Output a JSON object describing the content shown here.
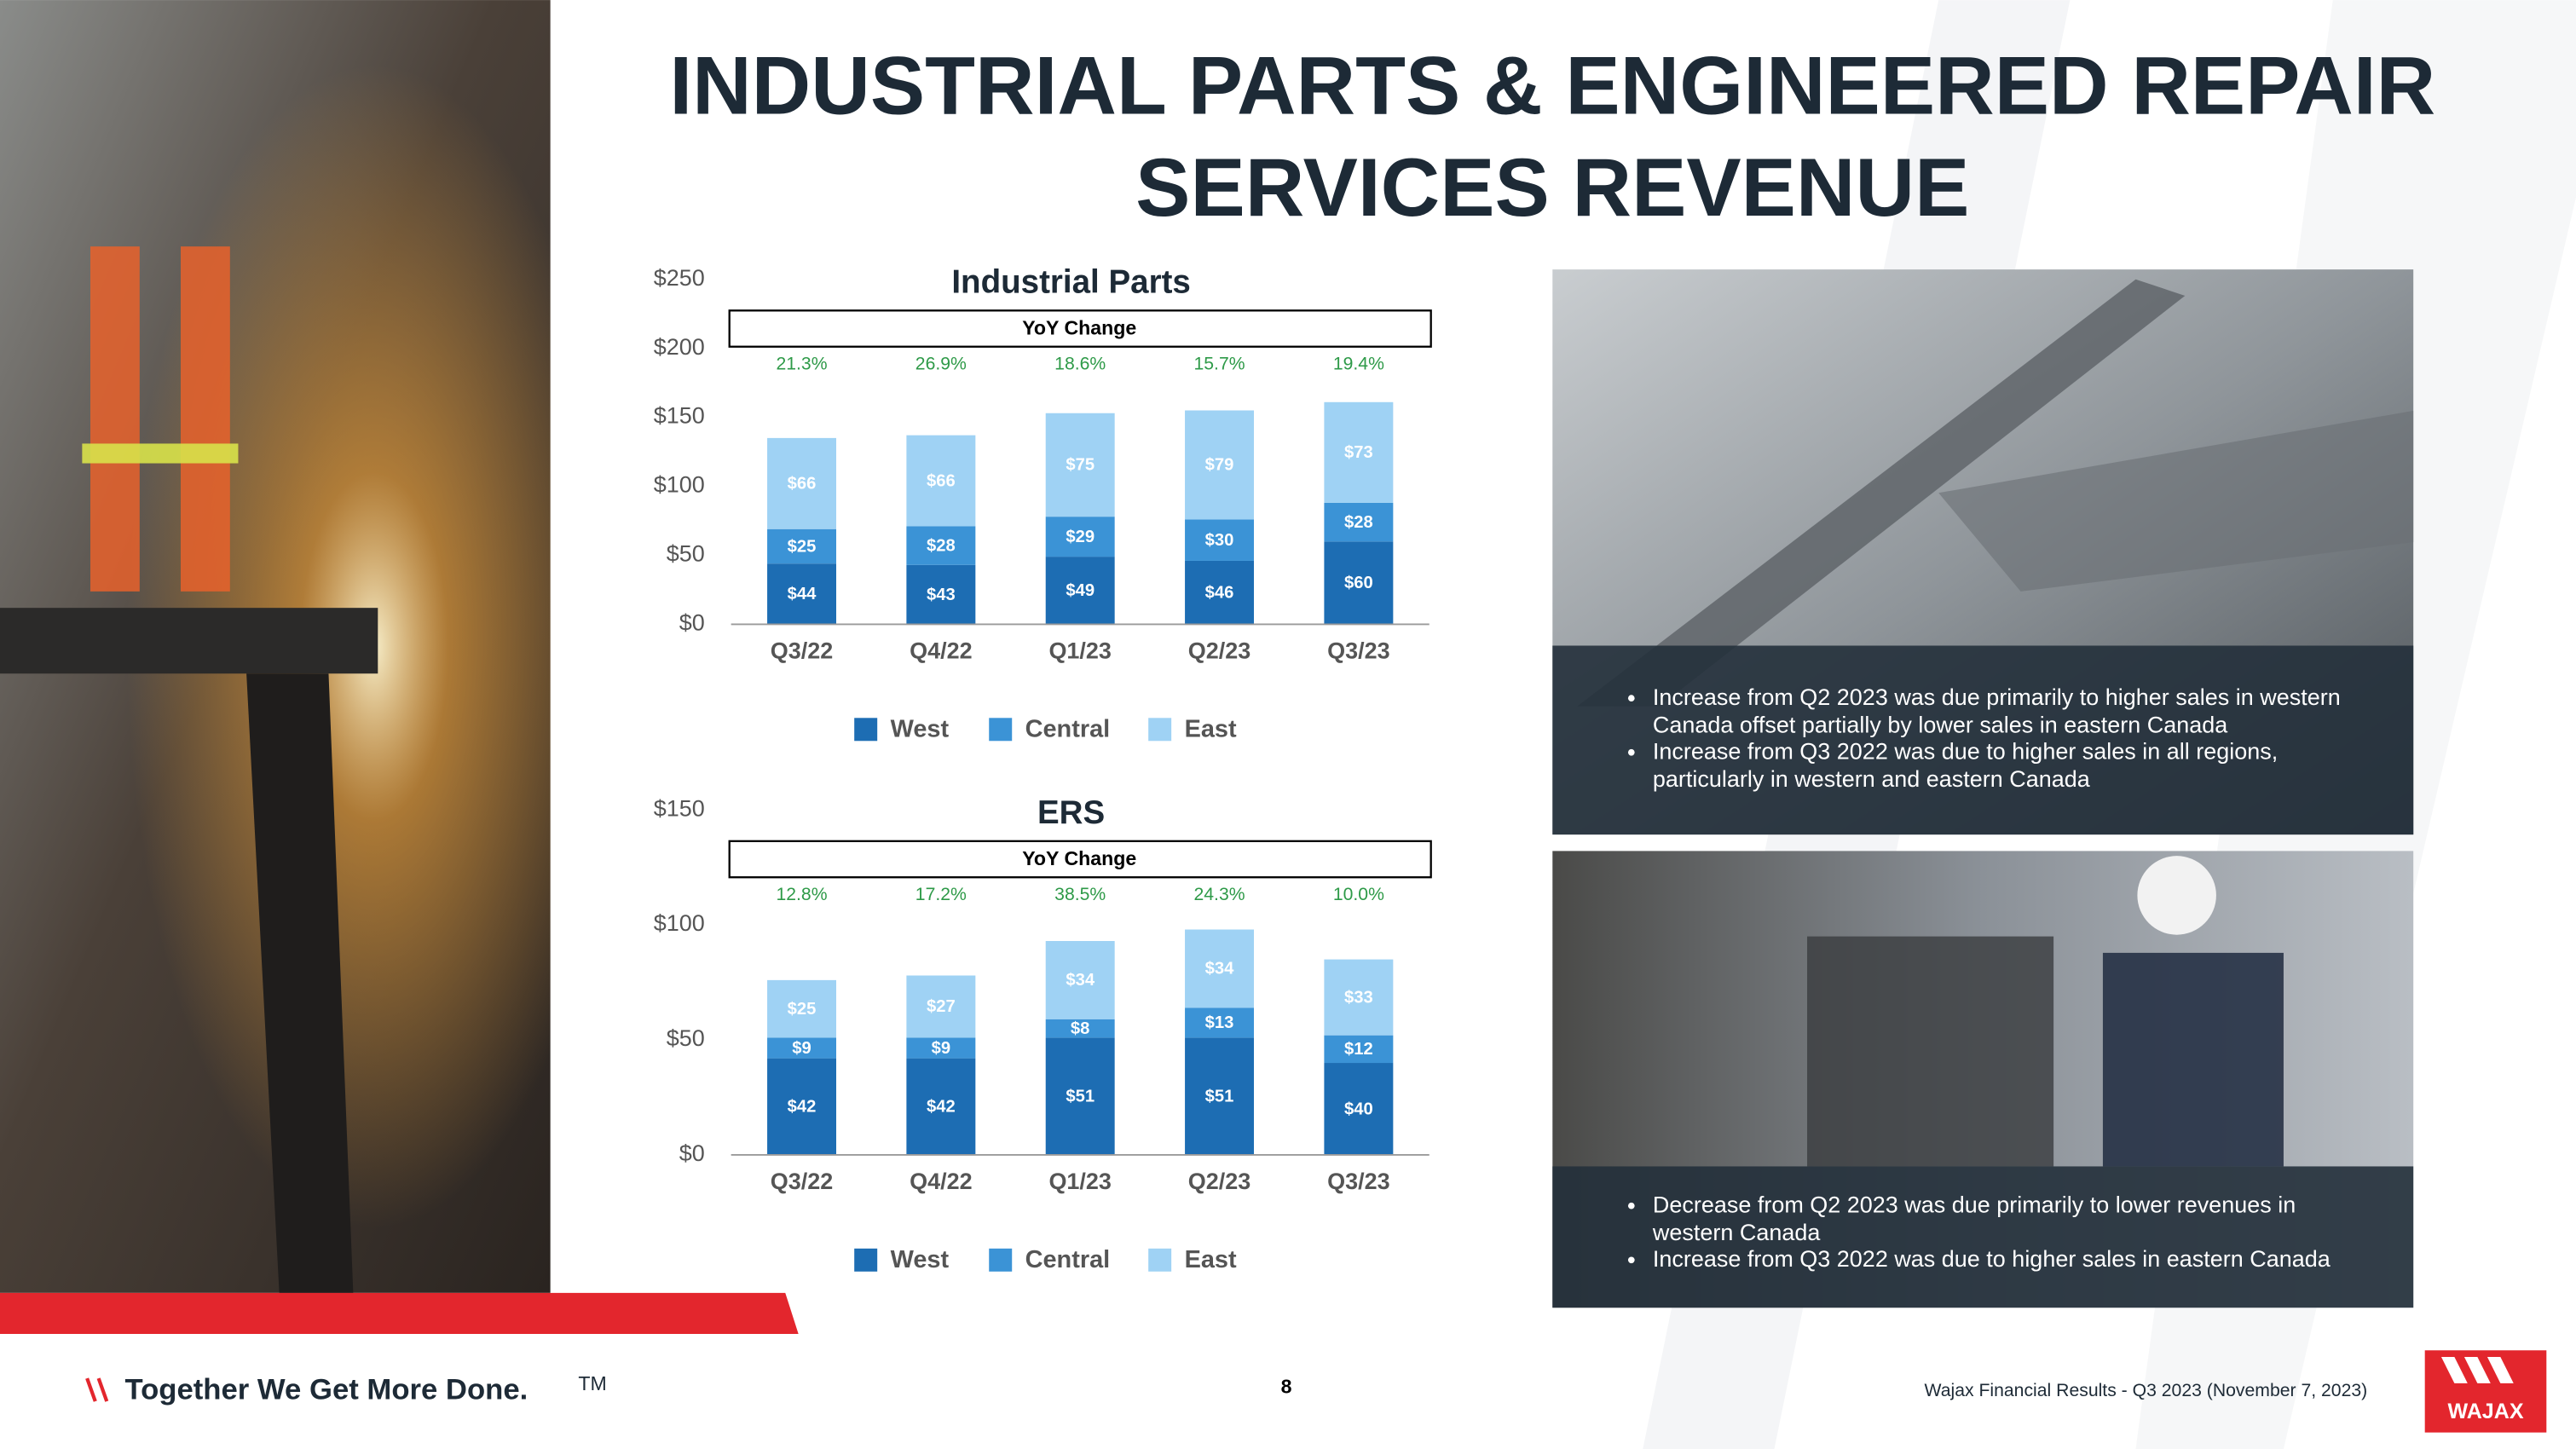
{
  "title": [
    "INDUSTRIAL PARTS & ENGINEERED REPAIR",
    "SERVICES REVENUE"
  ],
  "chart_data": [
    {
      "type": "bar",
      "stacked": true,
      "title": "Industrial Parts",
      "categories": [
        "Q3/22",
        "Q4/22",
        "Q1/23",
        "Q2/23",
        "Q3/23"
      ],
      "series": [
        {
          "name": "West",
          "color": "#1d6db3",
          "values": [
            44,
            43,
            49,
            46,
            60
          ],
          "value_labels": [
            "$44",
            "$43",
            "$49",
            "$46",
            "$60"
          ]
        },
        {
          "name": "Central",
          "color": "#3b93d6",
          "values": [
            25,
            28,
            29,
            30,
            28
          ],
          "value_labels": [
            "$25",
            "$28",
            "$29",
            "$30",
            "$28"
          ]
        },
        {
          "name": "East",
          "color": "#9fd2f4",
          "values": [
            66,
            66,
            75,
            79,
            73
          ],
          "value_labels": [
            "$66",
            "$66",
            "$75",
            "$79",
            "$73"
          ]
        }
      ],
      "ylim": [
        0,
        250
      ],
      "yticks": [
        {
          "value": 0,
          "label": "$0"
        },
        {
          "value": 50,
          "label": "$50"
        },
        {
          "value": 100,
          "label": "$100"
        },
        {
          "value": 150,
          "label": "$150"
        },
        {
          "value": 200,
          "label": "$200"
        },
        {
          "value": 250,
          "label": "$250"
        }
      ],
      "yoy": {
        "label": "YoY Change",
        "values": [
          "21.3%",
          "26.9%",
          "18.6%",
          "15.7%",
          "19.4%"
        ],
        "color": "#2e9a48"
      },
      "grid": false,
      "legend": "bottom"
    },
    {
      "type": "bar",
      "stacked": true,
      "title": "ERS",
      "categories": [
        "Q3/22",
        "Q4/22",
        "Q1/23",
        "Q2/23",
        "Q3/23"
      ],
      "series": [
        {
          "name": "West",
          "color": "#1d6db3",
          "values": [
            42,
            42,
            51,
            51,
            40
          ],
          "value_labels": [
            "$42",
            "$42",
            "$51",
            "$51",
            "$40"
          ]
        },
        {
          "name": "Central",
          "color": "#3b93d6",
          "values": [
            9,
            9,
            8,
            13,
            12
          ],
          "value_labels": [
            "$9",
            "$9",
            "$8",
            "$13",
            "$12"
          ]
        },
        {
          "name": "East",
          "color": "#9fd2f4",
          "values": [
            25,
            27,
            34,
            34,
            33
          ],
          "value_labels": [
            "$25",
            "$27",
            "$34",
            "$34",
            "$33"
          ]
        }
      ],
      "ylim": [
        0,
        150
      ],
      "yticks": [
        {
          "value": 0,
          "label": "$0"
        },
        {
          "value": 50,
          "label": "$50"
        },
        {
          "value": 100,
          "label": "$100"
        },
        {
          "value": 150,
          "label": "$150"
        }
      ],
      "yoy": {
        "label": "YoY Change",
        "values": [
          "12.8%",
          "17.2%",
          "38.5%",
          "24.3%",
          "10.0%"
        ],
        "color": "#2e9a48"
      },
      "grid": false,
      "legend": "bottom"
    }
  ],
  "panels": [
    {
      "bullets": [
        "Increase from Q2 2023 was due primarily to higher sales in western Canada offset partially by lower sales in eastern Canada",
        "Increase from Q3 2022 was due to higher sales in all regions, particularly in western and eastern Canada"
      ]
    },
    {
      "bullets": [
        "Decrease from Q2 2023 was due primarily to lower revenues in western Canada",
        "Increase from Q3 2022 was due to higher sales in eastern Canada"
      ]
    }
  ],
  "footer": {
    "tagline": "Together We Get More Done.",
    "trademark": "TM",
    "page_number": "8",
    "source": "Wajax Financial Results - Q3 2023 (November 7, 2023)",
    "logo": "WAJAX"
  }
}
